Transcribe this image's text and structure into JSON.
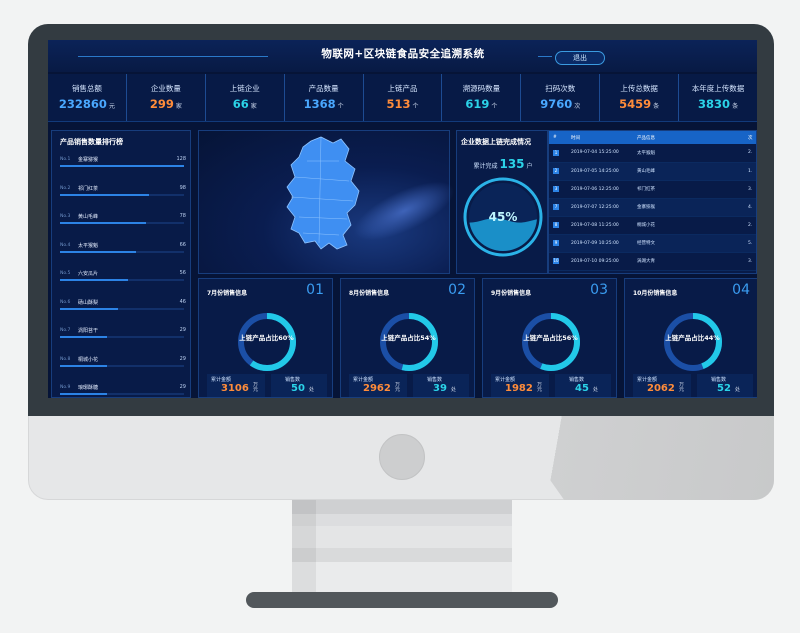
{
  "header": {
    "title": "物联网+区块链食品安全追溯系统",
    "logout_label": "退出"
  },
  "stats": [
    {
      "label": "销售总额",
      "value": "232860",
      "unit": "元",
      "color": "#4aa8ff"
    },
    {
      "label": "企业数量",
      "value": "299",
      "unit": "家",
      "color": "#ff8c3a"
    },
    {
      "label": "上链企业",
      "value": "66",
      "unit": "家",
      "color": "#2bd3e8"
    },
    {
      "label": "产品数量",
      "value": "1368",
      "unit": "个",
      "color": "#4aa8ff"
    },
    {
      "label": "上链产品",
      "value": "513",
      "unit": "个",
      "color": "#ff8c3a"
    },
    {
      "label": "溯源码数量",
      "value": "619",
      "unit": "个",
      "color": "#2bd3e8"
    },
    {
      "label": "扫码次数",
      "value": "9760",
      "unit": "次",
      "color": "#4aa8ff"
    },
    {
      "label": "上传总数据",
      "value": "5459",
      "unit": "条",
      "color": "#ff8c3a"
    },
    {
      "label": "本年度上传数据",
      "value": "3830",
      "unit": "条",
      "color": "#2bd3e8"
    }
  ],
  "ranking": {
    "title": "产品销售数量排行榜",
    "items": [
      {
        "no": "No.1",
        "name": "金寨猕猴",
        "count": "128",
        "ratio": 1.0
      },
      {
        "no": "No.2",
        "name": "祁门红茶",
        "count": "98",
        "ratio": 0.72
      },
      {
        "no": "No.3",
        "name": "黄山毛峰",
        "count": "78",
        "ratio": 0.69
      },
      {
        "no": "No.4",
        "name": "太平猴魁",
        "count": "66",
        "ratio": 0.61
      },
      {
        "no": "No.5",
        "name": "六安瓜片",
        "count": "56",
        "ratio": 0.55
      },
      {
        "no": "No.6",
        "name": "砀山酥梨",
        "count": "46",
        "ratio": 0.47
      },
      {
        "no": "No.7",
        "name": "涡阳苔干",
        "count": "29",
        "ratio": 0.38
      },
      {
        "no": "No.8",
        "name": "桐城小花",
        "count": "29",
        "ratio": 0.38
      },
      {
        "no": "No.9",
        "name": "琅琊酥糖",
        "count": "29",
        "ratio": 0.38
      }
    ]
  },
  "progress": {
    "title": "企业数据上链完成情况",
    "label": "累计完成",
    "count": "135",
    "unit": "户",
    "percent": "45%",
    "fraction": 0.45
  },
  "records": {
    "headers": [
      "#",
      "时间",
      "产品信息",
      "次"
    ],
    "rows": [
      {
        "no": "1",
        "time": "2019-07-04 15:25:00",
        "product": "太平猴魁",
        "n": "2."
      },
      {
        "no": "2",
        "time": "2019-07-05 14:25:00",
        "product": "黄山毛峰",
        "n": "1."
      },
      {
        "no": "3",
        "time": "2019-07-06 12:25:00",
        "product": "祁门红茶",
        "n": "3."
      },
      {
        "no": "7",
        "time": "2019-07-07 12:25:00",
        "product": "金寨猕猴",
        "n": "4."
      },
      {
        "no": "8",
        "time": "2019-07-08 11:25:00",
        "product": "桐城小花",
        "n": "2."
      },
      {
        "no": "9",
        "time": "2019-07-09 10:25:00",
        "product": "经营特文",
        "n": "5."
      },
      {
        "no": "10",
        "time": "2019-07-10 09:25:00",
        "product": "涡湖大青",
        "n": "3."
      }
    ]
  },
  "months": [
    {
      "title": "7月份销售信息",
      "num": "01",
      "ring": "上链产品占比60%",
      "ratio": 0.6,
      "sum_label": "累计金额",
      "sum": "3106",
      "sum_unit": "万元",
      "sales_label": "销售数",
      "sales": "50",
      "sales_unit": "处"
    },
    {
      "title": "8月份销售信息",
      "num": "02",
      "ring": "上链产品占比54%",
      "ratio": 0.54,
      "sum_label": "累计金额",
      "sum": "2962",
      "sum_unit": "万元",
      "sales_label": "销售数",
      "sales": "39",
      "sales_unit": "处"
    },
    {
      "title": "9月份销售信息",
      "num": "03",
      "ring": "上链产品占比56%",
      "ratio": 0.56,
      "sum_label": "累计金额",
      "sum": "1982",
      "sum_unit": "万元",
      "sales_label": "销售数",
      "sales": "45",
      "sales_unit": "处"
    },
    {
      "title": "10月份销售信息",
      "num": "04",
      "ring": "上链产品占比44%",
      "ratio": 0.44,
      "sum_label": "累计金额",
      "sum": "2062",
      "sum_unit": "万元",
      "sales_label": "销售数",
      "sales": "52",
      "sales_unit": "处"
    }
  ]
}
